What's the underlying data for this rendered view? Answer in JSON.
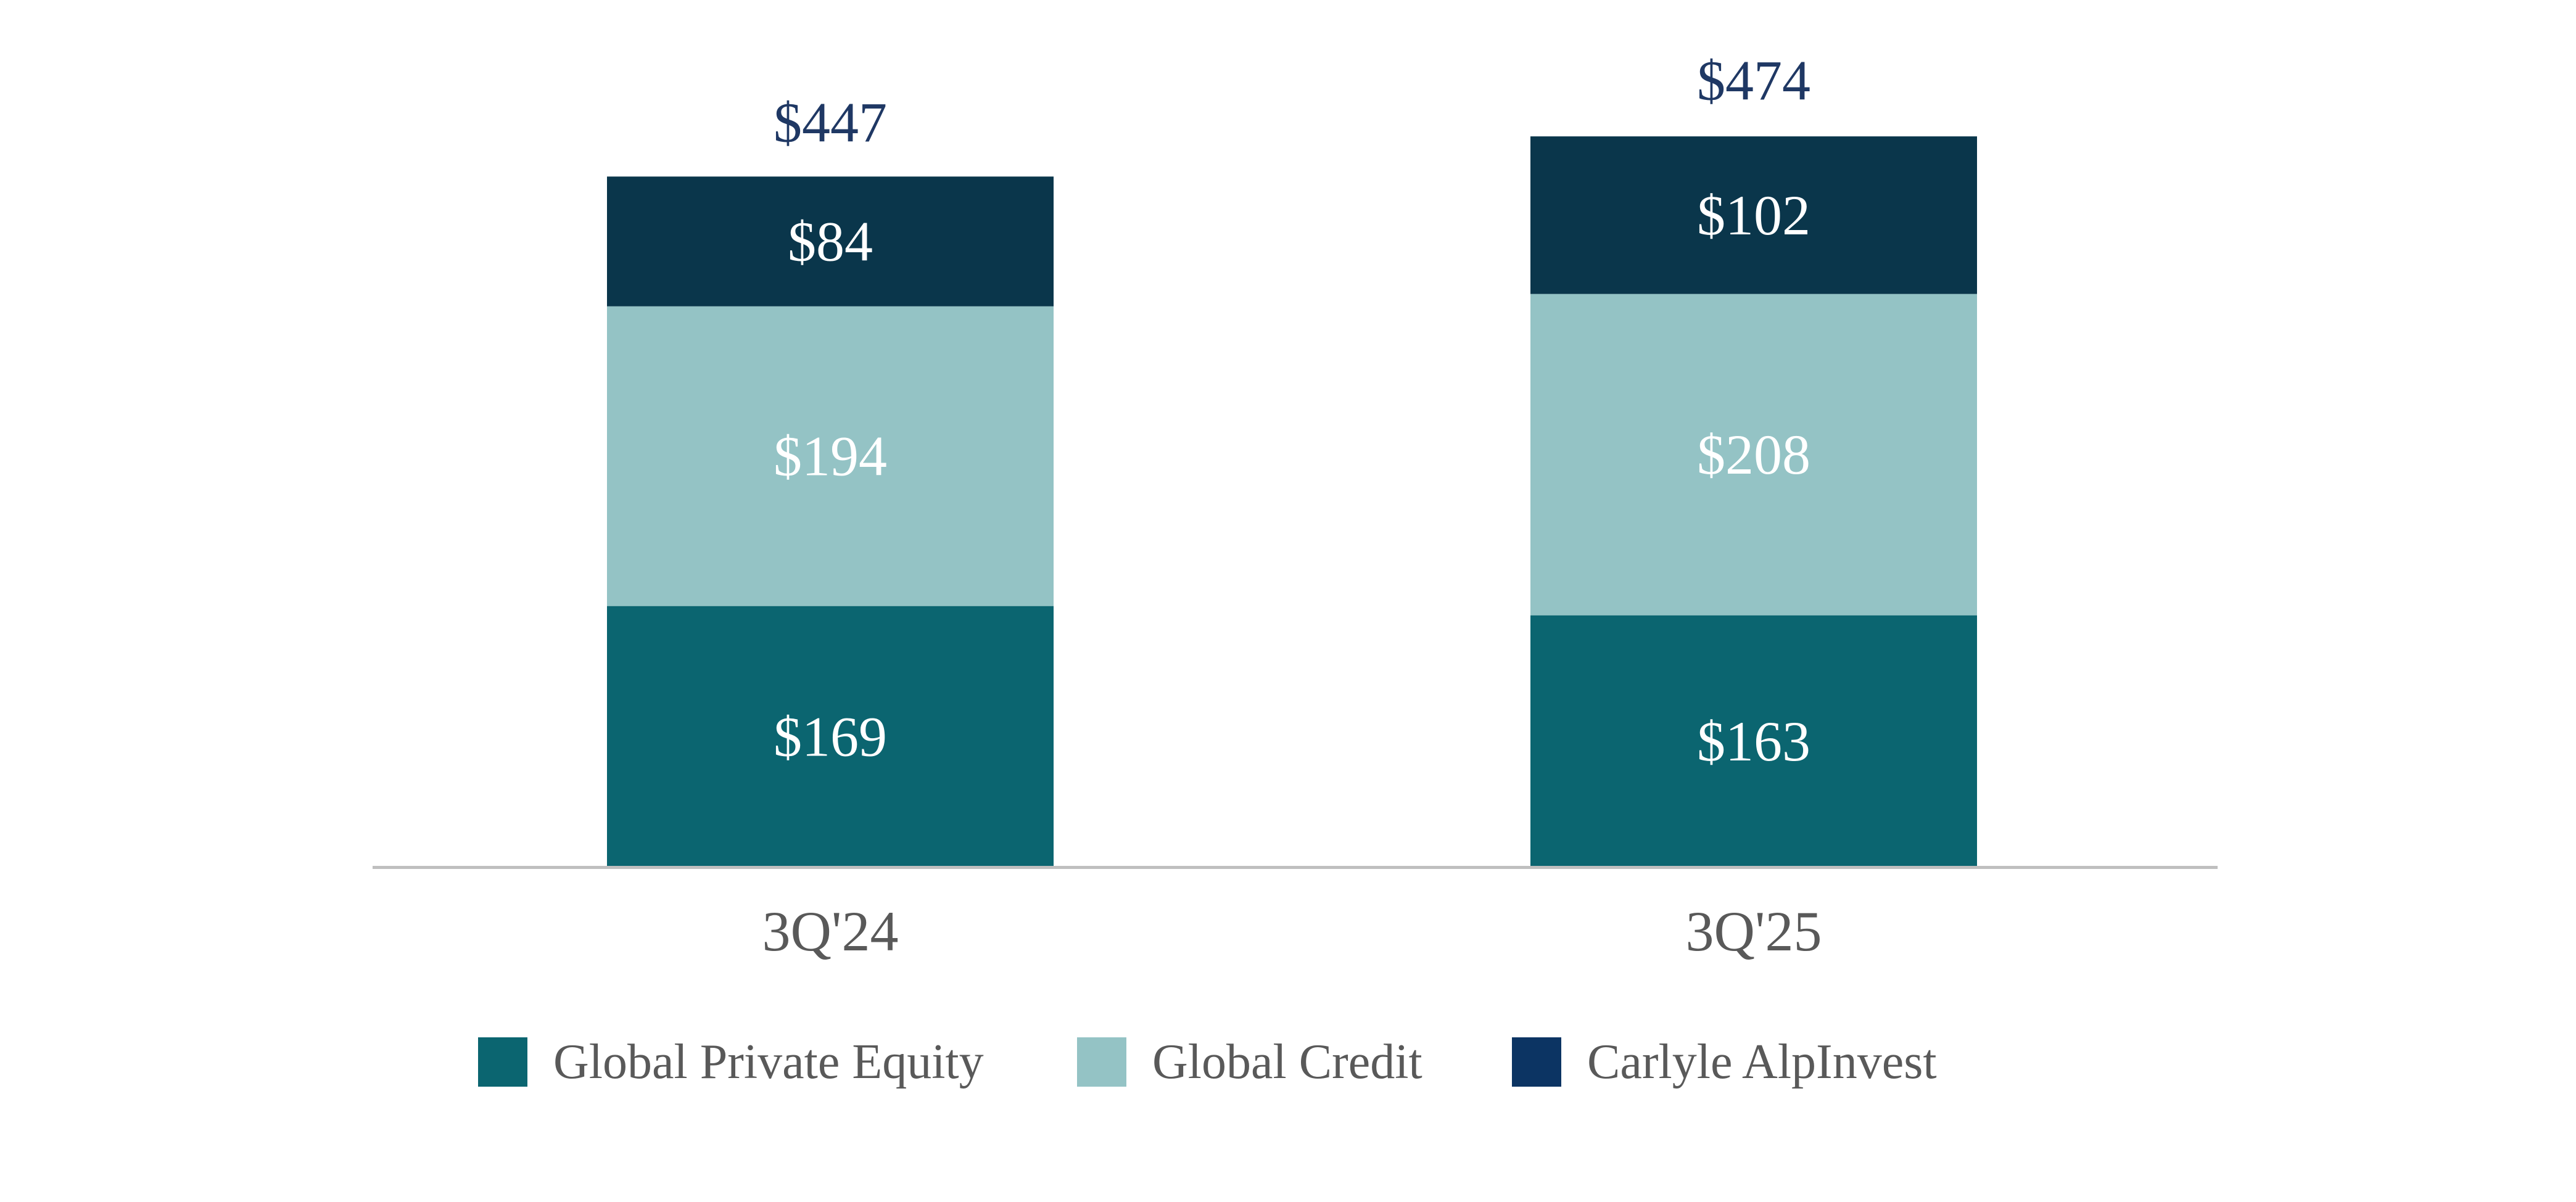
{
  "chart_data": {
    "type": "bar",
    "stacked": true,
    "title": "",
    "xlabel": "",
    "ylabel": "",
    "grid": false,
    "legend_position": "bottom-center",
    "ylim": [
      0,
      500
    ],
    "categories": [
      "3Q'24",
      "3Q'25"
    ],
    "series": [
      {
        "name": "Global Private Equity",
        "color": "#0b6570",
        "values": [
          169,
          163
        ],
        "labels": [
          "$169",
          "$163"
        ]
      },
      {
        "name": "Global Credit",
        "color": "#94c3c5",
        "values": [
          194,
          208
        ],
        "labels": [
          "$194",
          "$208"
        ]
      },
      {
        "name": "Carlyle AlpInvest",
        "color": "#0a364b",
        "legend_color": "#0c3463",
        "values": [
          84,
          102
        ],
        "labels": [
          "$84",
          "$102"
        ]
      }
    ],
    "totals": [
      447,
      474
    ],
    "total_labels": [
      "$447",
      "$474"
    ],
    "colors": {
      "axis": "#bfbfbf",
      "tick_text": "#595959",
      "legend_text": "#595959",
      "total_text": "#1f3864",
      "segment_text": "#ffffff"
    }
  }
}
